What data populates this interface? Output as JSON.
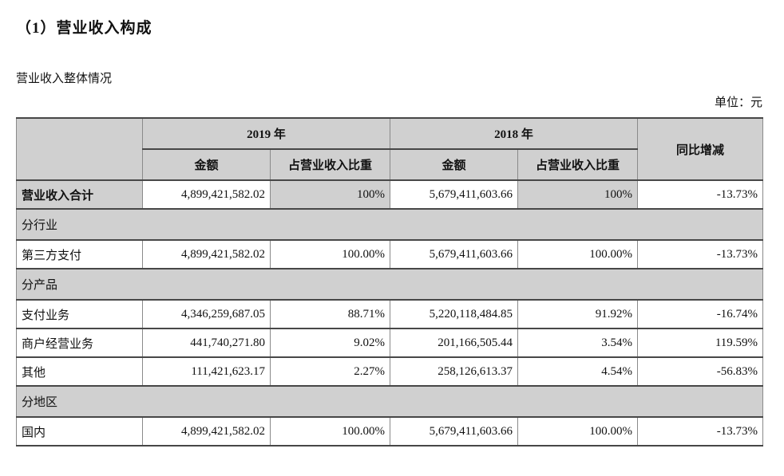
{
  "page": {
    "title": "（1）营业收入构成",
    "subtitle": "营业收入整体情况",
    "unit_label": "单位：元"
  },
  "colors": {
    "cell_fill_gray": "#d0d0d0",
    "border_dark": "#474747",
    "border_light": "#8a8a8a",
    "text": "#111111"
  },
  "table": {
    "col_headers": {
      "year_2019": "2019 年",
      "year_2018": "2018 年",
      "yoy": "同比增减",
      "amount": "金额",
      "proportion": "占营业收入比重"
    },
    "rows": [
      {
        "type": "total",
        "label": "营业收入合计",
        "a2019": "4,899,421,582.02",
        "p2019": "100%",
        "a2018": "5,679,411,603.66",
        "p2018": "100%",
        "yoy": "-13.73%"
      },
      {
        "type": "section",
        "label": "分行业"
      },
      {
        "type": "data",
        "label": "第三方支付",
        "a2019": "4,899,421,582.02",
        "p2019": "100.00%",
        "a2018": "5,679,411,603.66",
        "p2018": "100.00%",
        "yoy": "-13.73%"
      },
      {
        "type": "section",
        "label": "分产品"
      },
      {
        "type": "data",
        "label": "支付业务",
        "a2019": "4,346,259,687.05",
        "p2019": "88.71%",
        "a2018": "5,220,118,484.85",
        "p2018": "91.92%",
        "yoy": "-16.74%"
      },
      {
        "type": "data",
        "label": "商户经营业务",
        "a2019": "441,740,271.80",
        "p2019": "9.02%",
        "a2018": "201,166,505.44",
        "p2018": "3.54%",
        "yoy": "119.59%"
      },
      {
        "type": "data",
        "label": "其他",
        "a2019": "111,421,623.17",
        "p2019": "2.27%",
        "a2018": "258,126,613.37",
        "p2018": "4.54%",
        "yoy": "-56.83%"
      },
      {
        "type": "section",
        "label": "分地区"
      },
      {
        "type": "data",
        "label": "国内",
        "a2019": "4,899,421,582.02",
        "p2019": "100.00%",
        "a2018": "5,679,411,603.66",
        "p2018": "100.00%",
        "yoy": "-13.73%"
      }
    ]
  }
}
